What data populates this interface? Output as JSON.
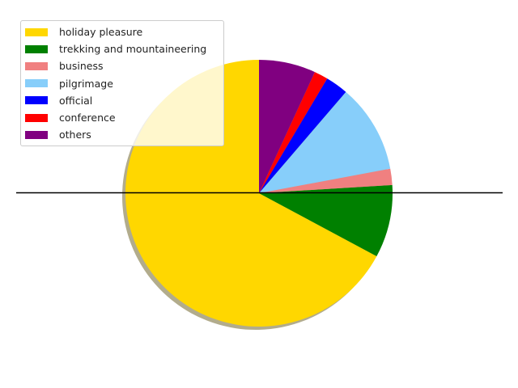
{
  "chart_data": {
    "type": "pie",
    "title": "",
    "start_angle_deg": 90,
    "direction": "counterclockwise",
    "shadow": true,
    "legend_position": "upper-left",
    "axis_line": "horizontal",
    "slices": [
      {
        "label": "holiday pleasure",
        "value": 68.5,
        "color": "#FFD700"
      },
      {
        "label": "trekking and mountaineering",
        "value": 9.0,
        "color": "#008000"
      },
      {
        "label": "business",
        "value": 2.0,
        "color": "#F08080"
      },
      {
        "label": "pilgrimage",
        "value": 11.0,
        "color": "#87CEFA"
      },
      {
        "label": "official",
        "value": 2.8,
        "color": "#0000FF"
      },
      {
        "label": "conference",
        "value": 1.7,
        "color": "#FF0000"
      },
      {
        "label": "others",
        "value": 7.0,
        "color": "#800080"
      }
    ]
  }
}
